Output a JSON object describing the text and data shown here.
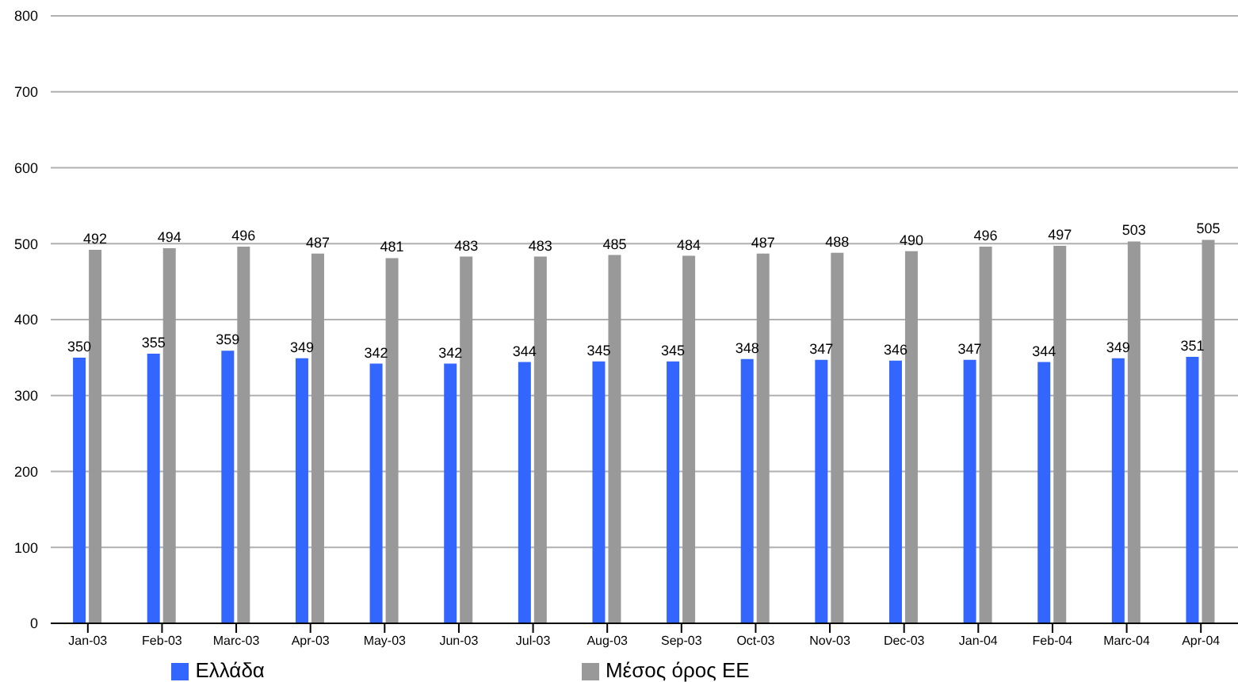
{
  "chart_data": {
    "type": "bar",
    "categories": [
      "Jan-03",
      "Feb-03",
      "Marc-03",
      "Apr-03",
      "May-03",
      "Jun-03",
      "Jul-03",
      "Aug-03",
      "Sep-03",
      "Oct-03",
      "Nov-03",
      "Dec-03",
      "Jan-04",
      "Feb-04",
      "Marc-04",
      "Apr-04"
    ],
    "series": [
      {
        "name": "Ελλάδα",
        "color": "#3366ff",
        "values": [
          350,
          355,
          359,
          349,
          342,
          342,
          344,
          345,
          345,
          348,
          347,
          346,
          347,
          344,
          349,
          351
        ]
      },
      {
        "name": "Μέσος όρος ΕΕ",
        "color": "#999999",
        "values": [
          492,
          494,
          496,
          487,
          481,
          483,
          483,
          485,
          484,
          487,
          488,
          490,
          496,
          497,
          503,
          505
        ]
      }
    ],
    "ylim": [
      0,
      800
    ],
    "yticks": [
      0,
      100,
      200,
      300,
      400,
      500,
      600,
      700,
      800
    ],
    "grid": "y",
    "legend": "bottom",
    "data_labels": true
  }
}
